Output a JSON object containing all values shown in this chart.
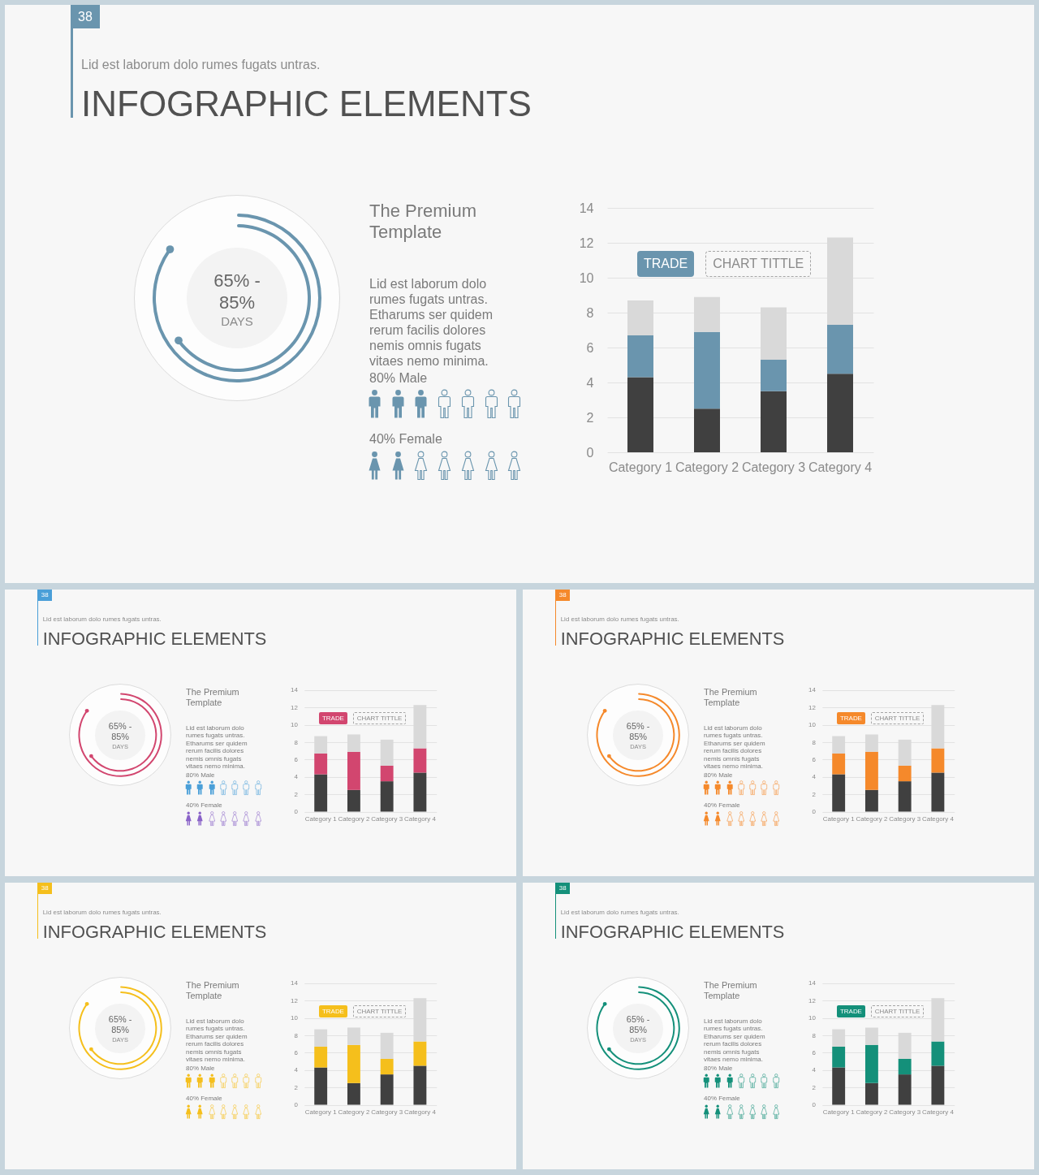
{
  "chart_data": [
    {
      "type": "other",
      "title": "INFOGRAPHIC ELEMENTS",
      "subtitle": "Lid est laborum dolo rumes fugats untras.",
      "values": [
        65,
        85
      ],
      "value_labels": [
        "65% -",
        "85%"
      ],
      "color": "#6a95ae",
      "annotations": [
        "38",
        "DAYS",
        "The Premium Template",
        "Lid est laborum dolo rumes fugats untras. Etharums ser quidem rerum facilis dolores nemis omnis fugats vitaes nemo minima.",
        "80% Male",
        "40% Female"
      ]
    },
    {
      "type": "bar",
      "categories": [
        "Category 1",
        "Category 2",
        "Category 3",
        "Category 4"
      ],
      "stacked": true,
      "series": [
        {
          "color": "#404040",
          "values": [
            4.3,
            2.5,
            3.5,
            4.5
          ]
        },
        {
          "color": "#6a95ae",
          "values": [
            2.4,
            4.4,
            1.8,
            2.8
          ]
        },
        {
          "color": "#d9d9d9",
          "values": [
            2,
            2,
            3,
            5
          ]
        }
      ],
      "ylim": [
        0,
        14
      ],
      "yticks": [
        0,
        2,
        4,
        6,
        8,
        10,
        12,
        14
      ],
      "grid": "y",
      "annotations": [
        "TRADE",
        "CHART TITTLE"
      ]
    },
    {
      "type": "other",
      "title": "INFOGRAPHIC ELEMENTS",
      "subtitle": "Lid est laborum dolo rumes fugats untras.",
      "values": [
        65,
        85
      ],
      "value_labels": [
        "65% -",
        "85%"
      ],
      "color": "#d2466f",
      "annotations": [
        "38",
        "DAYS",
        "The Premium Template",
        "Lid est laborum dolo rumes fugats untras. Etharums ser quidem rerum facilis dolores nemis omnis fugats vitaes nemo minima.",
        "80% Male",
        "40% Female"
      ]
    },
    {
      "type": "bar",
      "categories": [
        "Category 1",
        "Category 2",
        "Category 3",
        "Category 4"
      ],
      "stacked": true,
      "series": [
        {
          "color": "#404040",
          "values": [
            4.3,
            2.5,
            3.5,
            4.5
          ]
        },
        {
          "color": "#d2466f",
          "values": [
            2.4,
            4.4,
            1.8,
            2.8
          ]
        },
        {
          "color": "#d9d9d9",
          "values": [
            2,
            2,
            3,
            5
          ]
        }
      ],
      "ylim": [
        0,
        14
      ],
      "yticks": [
        0,
        2,
        4,
        6,
        8,
        10,
        12,
        14
      ],
      "grid": "y",
      "annotations": [
        "TRADE",
        "CHART TITTLE"
      ]
    },
    {
      "type": "other",
      "title": "INFOGRAPHIC ELEMENTS",
      "subtitle": "Lid est laborum dolo rumes fugats untras.",
      "values": [
        65,
        85
      ],
      "value_labels": [
        "65% -",
        "85%"
      ],
      "color": "#f5892b",
      "annotations": [
        "38",
        "DAYS",
        "The Premium Template",
        "Lid est laborum dolo rumes fugats untras. Etharums ser quidem rerum facilis dolores nemis omnis fugats vitaes nemo minima.",
        "80% Male",
        "40% Female"
      ]
    },
    {
      "type": "bar",
      "categories": [
        "Category 1",
        "Category 2",
        "Category 3",
        "Category 4"
      ],
      "stacked": true,
      "series": [
        {
          "color": "#404040",
          "values": [
            4.3,
            2.5,
            3.5,
            4.5
          ]
        },
        {
          "color": "#f5892b",
          "values": [
            2.4,
            4.4,
            1.8,
            2.8
          ]
        },
        {
          "color": "#d9d9d9",
          "values": [
            2,
            2,
            3,
            5
          ]
        }
      ],
      "ylim": [
        0,
        14
      ],
      "yticks": [
        0,
        2,
        4,
        6,
        8,
        10,
        12,
        14
      ],
      "grid": "y",
      "annotations": [
        "TRADE",
        "CHART TITTLE"
      ]
    },
    {
      "type": "other",
      "title": "INFOGRAPHIC ELEMENTS",
      "subtitle": "Lid est laborum dolo rumes fugats untras.",
      "values": [
        65,
        85
      ],
      "value_labels": [
        "65% -",
        "85%"
      ],
      "color": "#f5bf1c",
      "annotations": [
        "38",
        "DAYS",
        "The Premium Template",
        "Lid est laborum dolo rumes fugats untras. Etharums ser quidem rerum facilis dolores nemis omnis fugats vitaes nemo minima.",
        "80% Male",
        "40% Female"
      ]
    },
    {
      "type": "bar",
      "categories": [
        "Category 1",
        "Category 2",
        "Category 3",
        "Category 4"
      ],
      "stacked": true,
      "series": [
        {
          "color": "#404040",
          "values": [
            4.3,
            2.5,
            3.5,
            4.5
          ]
        },
        {
          "color": "#f5bf1c",
          "values": [
            2.4,
            4.4,
            1.8,
            2.8
          ]
        },
        {
          "color": "#d9d9d9",
          "values": [
            2,
            2,
            3,
            5
          ]
        }
      ],
      "ylim": [
        0,
        14
      ],
      "yticks": [
        0,
        2,
        4,
        6,
        8,
        10,
        12,
        14
      ],
      "grid": "y",
      "annotations": [
        "TRADE",
        "CHART TITTLE"
      ]
    },
    {
      "type": "other",
      "title": "INFOGRAPHIC ELEMENTS",
      "subtitle": "Lid est laborum dolo rumes fugats untras.",
      "values": [
        65,
        85
      ],
      "value_labels": [
        "65% -",
        "85%"
      ],
      "color": "#14907a",
      "annotations": [
        "38",
        "DAYS",
        "The Premium Template",
        "Lid est laborum dolo rumes fugats untras. Etharums ser quidem rerum facilis dolores nemis omnis fugats vitaes nemo minima.",
        "80% Male",
        "40% Female"
      ]
    },
    {
      "type": "bar",
      "categories": [
        "Category 1",
        "Category 2",
        "Category 3",
        "Category 4"
      ],
      "stacked": true,
      "series": [
        {
          "color": "#404040",
          "values": [
            4.3,
            2.5,
            3.5,
            4.5
          ]
        },
        {
          "color": "#14907a",
          "values": [
            2.4,
            4.4,
            1.8,
            2.8
          ]
        },
        {
          "color": "#d9d9d9",
          "values": [
            2,
            2,
            3,
            5
          ]
        }
      ],
      "ylim": [
        0,
        14
      ],
      "yticks": [
        0,
        2,
        4,
        6,
        8,
        10,
        12,
        14
      ],
      "grid": "y",
      "annotations": [
        "TRADE",
        "CHART TITTLE"
      ]
    }
  ]
}
